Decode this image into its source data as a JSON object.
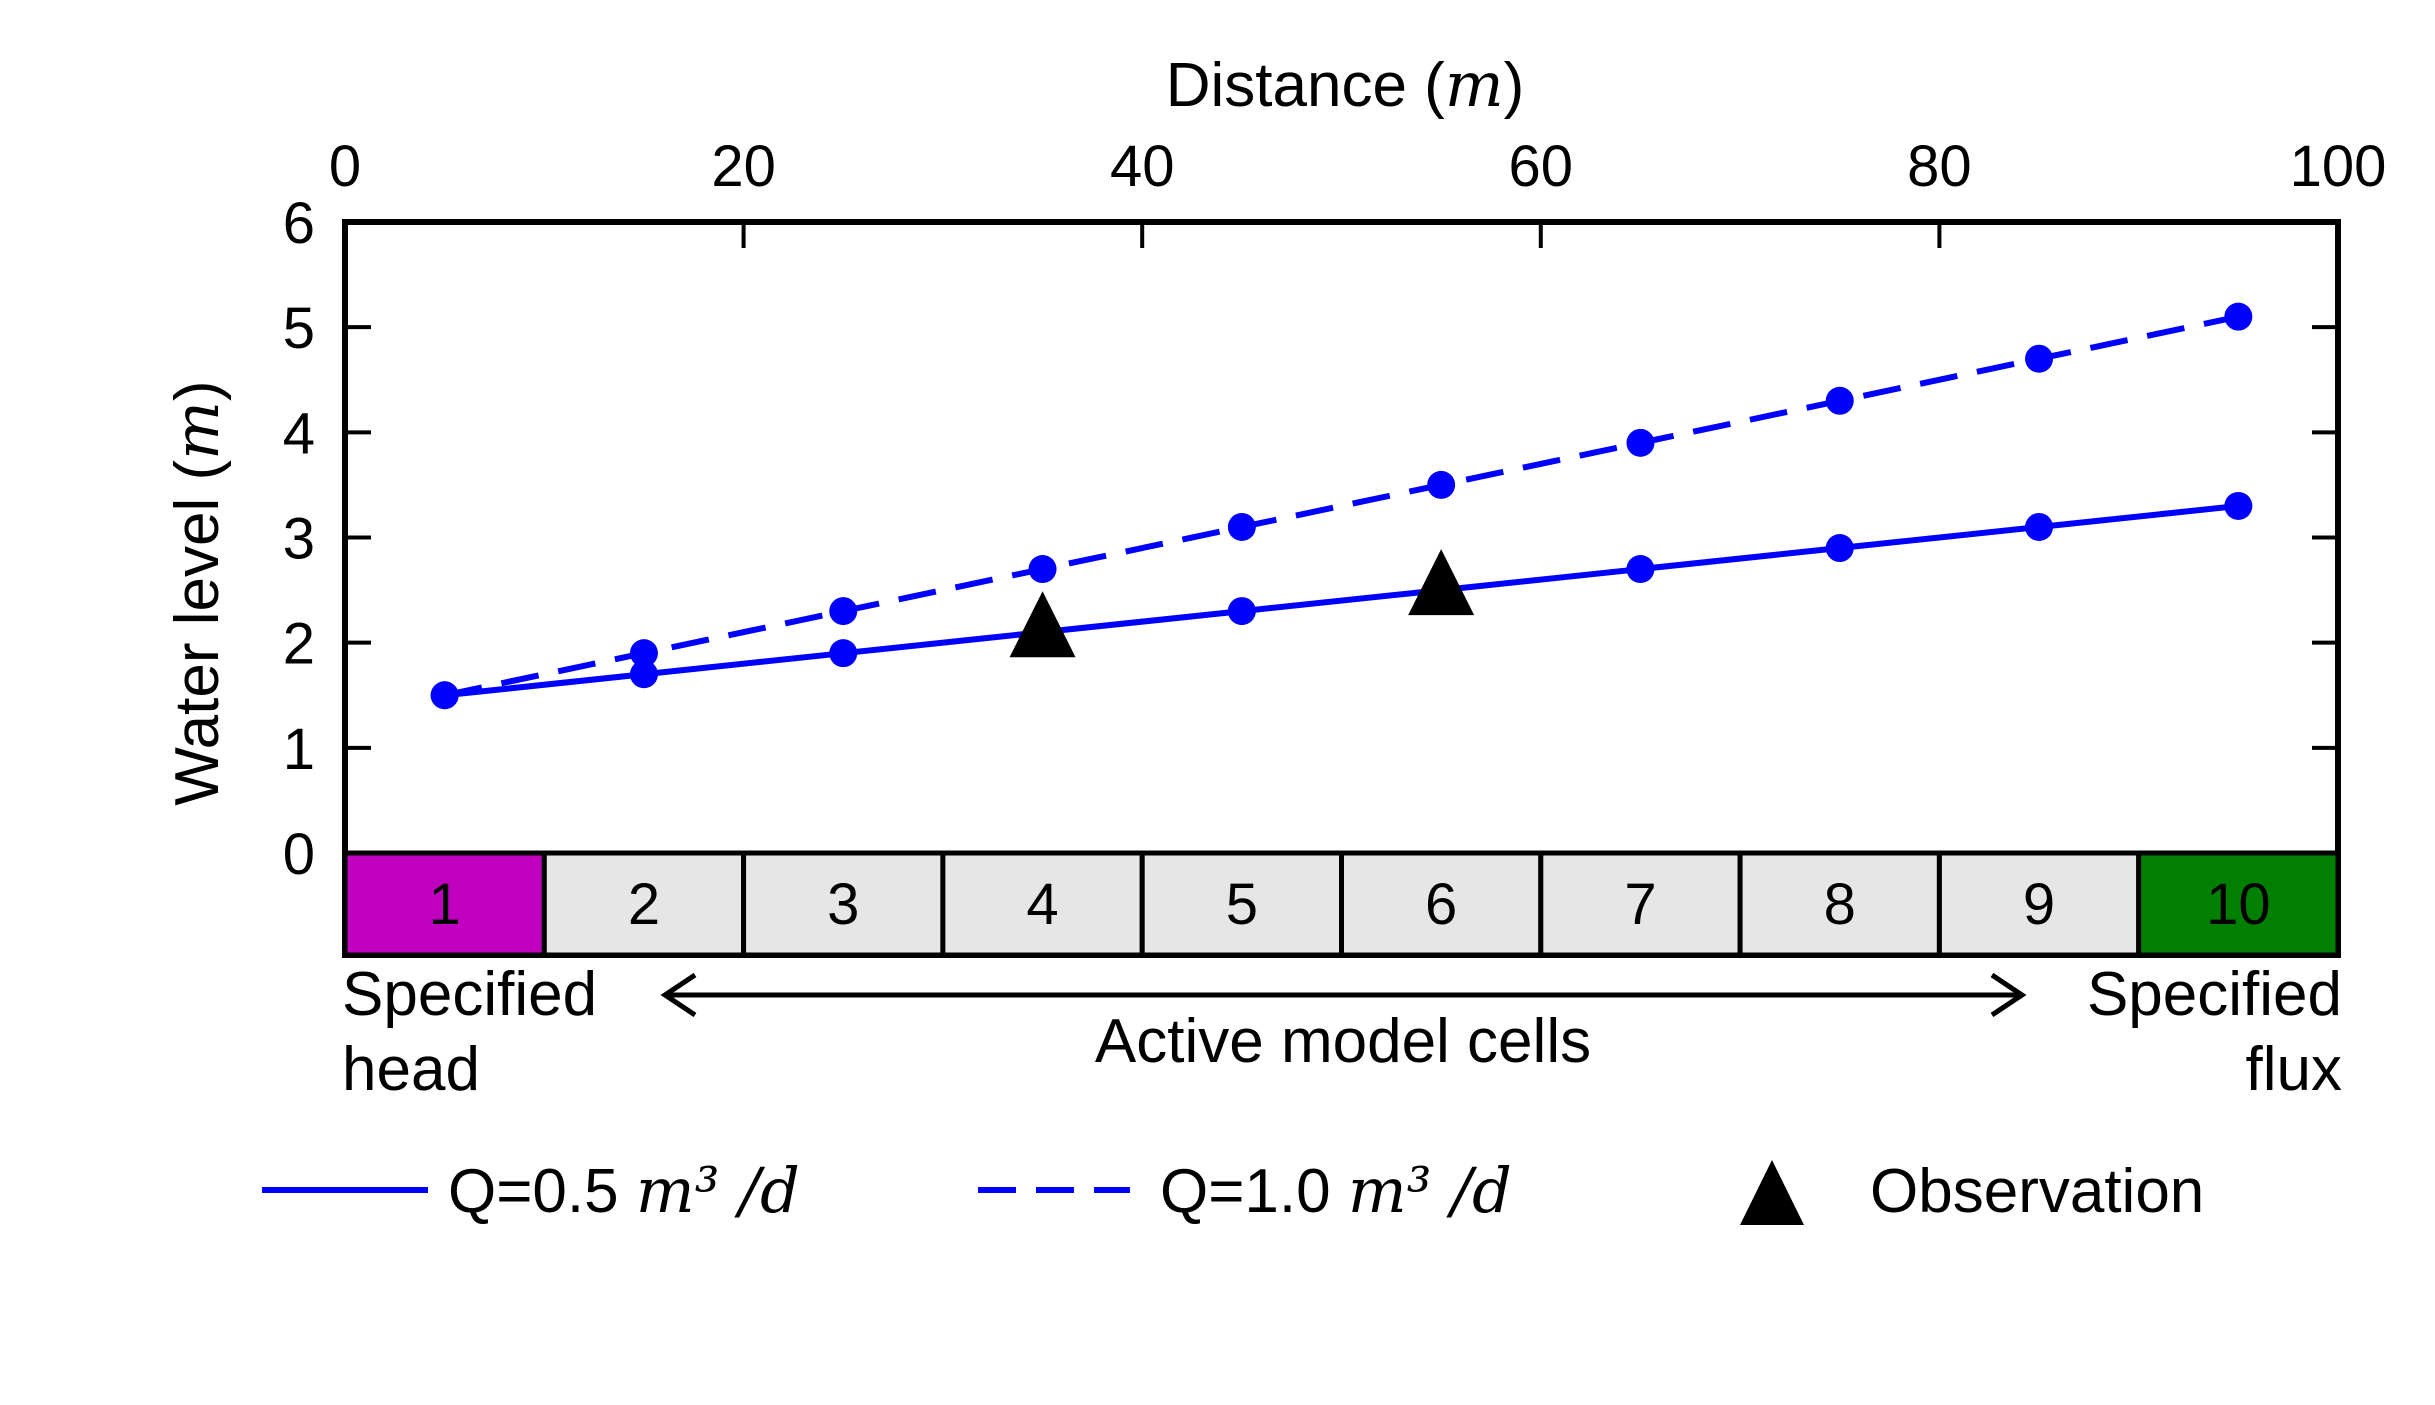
{
  "chart_data": {
    "type": "line",
    "xlabel": "Distance",
    "xlabel_unit": "m",
    "ylabel": "Water level",
    "ylabel_unit": "m",
    "x_axis_position": "top",
    "xlim": [
      0,
      100
    ],
    "ylim": [
      0,
      6
    ],
    "x_ticks": [
      0,
      20,
      40,
      60,
      80,
      100
    ],
    "y_ticks": [
      0,
      1,
      2,
      3,
      4,
      5,
      6
    ],
    "grid": false,
    "x": [
      5,
      15,
      25,
      35,
      45,
      55,
      65,
      75,
      85,
      95
    ],
    "series": [
      {
        "name_prefix": "Q=0.5",
        "name_unit": "m³ /d",
        "style": "solid",
        "color": "#0000ff",
        "values": [
          1.5,
          1.7,
          1.9,
          2.1,
          2.3,
          2.5,
          2.7,
          2.9,
          3.1,
          3.3
        ]
      },
      {
        "name_prefix": "Q=1.0",
        "name_unit": "m³ /d",
        "style": "dashed",
        "color": "#0000ff",
        "values": [
          1.5,
          1.9,
          2.3,
          2.7,
          3.1,
          3.5,
          3.9,
          4.3,
          4.7,
          5.1
        ]
      }
    ],
    "observations": {
      "name": "Observation",
      "color": "#000000",
      "points": [
        {
          "x": 35,
          "y": 2.1
        },
        {
          "x": 55,
          "y": 2.5
        }
      ]
    },
    "cells": {
      "labels": [
        "1",
        "2",
        "3",
        "4",
        "5",
        "6",
        "7",
        "8",
        "9",
        "10"
      ],
      "colors": [
        "#bf00bf",
        "#e6e6e6",
        "#e6e6e6",
        "#e6e6e6",
        "#e6e6e6",
        "#e6e6e6",
        "#e6e6e6",
        "#e6e6e6",
        "#e6e6e6",
        "#007f00"
      ]
    },
    "annotations": {
      "left_line1": "Specified",
      "left_line2": "head",
      "middle": "Active model cells",
      "right_line1": "Specified",
      "right_line2": "flux"
    },
    "legend_placement": "bottom"
  }
}
